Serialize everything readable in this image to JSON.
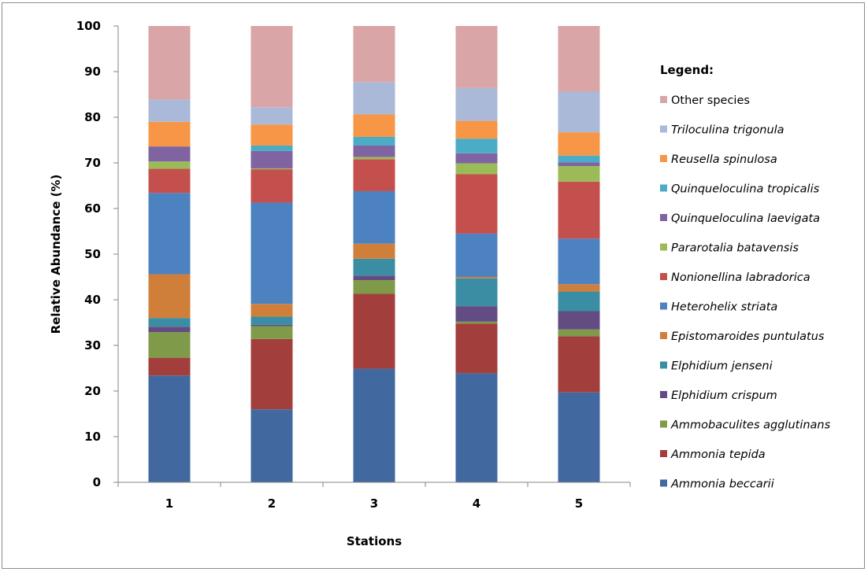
{
  "chart_data": {
    "type": "bar",
    "stacked": true,
    "categories": [
      "1",
      "2",
      "3",
      "4",
      "5"
    ],
    "xlabel": "Stations",
    "ylabel": "Relative Abundance (%)",
    "ylim": [
      0,
      100
    ],
    "yticks": [
      0,
      10,
      20,
      30,
      40,
      50,
      60,
      70,
      80,
      90,
      100
    ],
    "grid": false,
    "legend_title": "Legend:",
    "legend_position": "right",
    "series": [
      {
        "name": "Ammonia beccarii",
        "italic": true,
        "color": "#4169a0",
        "values": [
          23.4,
          16.0,
          24.9,
          23.9,
          19.7
        ]
      },
      {
        "name": "Ammonia tepida",
        "italic": true,
        "color": "#a23f3c",
        "values": [
          3.9,
          15.4,
          16.4,
          10.9,
          12.3
        ]
      },
      {
        "name": "Ammobaculites agglutinans",
        "italic": true,
        "color": "#7f9a48",
        "values": [
          5.6,
          2.8,
          3.0,
          0.4,
          1.5
        ]
      },
      {
        "name": "Elphidium crispum",
        "italic": true,
        "color": "#634c82",
        "values": [
          1.2,
          0.3,
          1.0,
          3.4,
          4.0
        ]
      },
      {
        "name": "Elphidium jenseni",
        "italic": true,
        "color": "#3a8da3",
        "values": [
          1.9,
          1.8,
          3.7,
          6.1,
          4.3
        ]
      },
      {
        "name": "Epistomaroides puntulatus",
        "italic": true,
        "color": "#d07f3a",
        "values": [
          9.6,
          2.8,
          3.3,
          0.3,
          1.6
        ]
      },
      {
        "name": "Heterohelix striata",
        "italic": true,
        "color": "#4d82c0",
        "values": [
          17.8,
          22.2,
          11.5,
          9.5,
          10.0
        ]
      },
      {
        "name": "Nonionellina labradorica",
        "italic": true,
        "color": "#c4504e",
        "values": [
          5.3,
          7.3,
          7.0,
          13.0,
          12.5
        ]
      },
      {
        "name": "Pararotalia batavensis",
        "italic": true,
        "color": "#9bbb59",
        "values": [
          1.6,
          0.2,
          0.5,
          2.4,
          3.4
        ]
      },
      {
        "name": "Quinqueloculina laevigata",
        "italic": true,
        "color": "#8064a2",
        "values": [
          3.3,
          3.8,
          2.5,
          2.2,
          0.8
        ]
      },
      {
        "name": "Quinqueloculina tropicalis",
        "italic": true,
        "color": "#4bacc6",
        "values": [
          0.0,
          1.2,
          1.9,
          3.2,
          1.5
        ]
      },
      {
        "name": "Reusella spinulosa",
        "italic": true,
        "color": "#f79646",
        "values": [
          5.4,
          4.6,
          4.9,
          3.9,
          5.1
        ]
      },
      {
        "name": "Triloculina trigonula",
        "italic": true,
        "color": "#aab9d8",
        "values": [
          4.9,
          3.8,
          7.1,
          7.2,
          8.9
        ]
      },
      {
        "name": "Other species",
        "italic": false,
        "color": "#d9a5a6",
        "values": [
          16.1,
          17.8,
          12.3,
          13.6,
          14.4
        ]
      }
    ]
  }
}
